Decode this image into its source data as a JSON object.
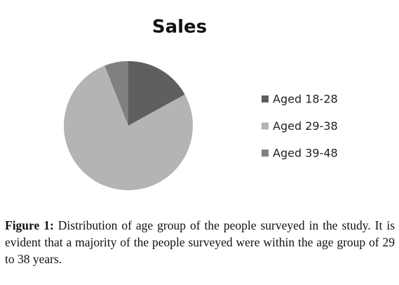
{
  "chart_data": {
    "type": "pie",
    "title": "Sales",
    "categories": [
      "Aged 18-28",
      "Aged 29-38",
      "Aged 39-48"
    ],
    "values": [
      17,
      77,
      6
    ],
    "colors": [
      "#5f5f5f",
      "#b4b4b4",
      "#808080"
    ],
    "legend": "right",
    "caption_label": "Figure 1:",
    "caption": "Distribution of age group of the people surveyed in the study. It is evident that a majority of the people surveyed were within the age group of 29 to 38 years."
  }
}
